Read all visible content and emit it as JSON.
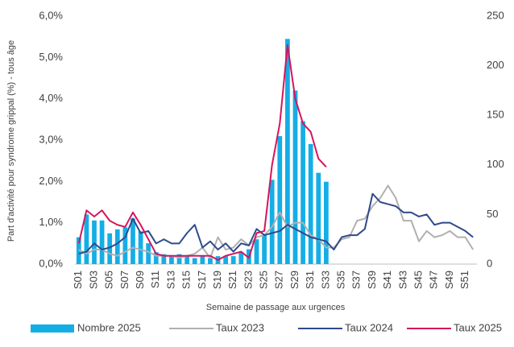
{
  "chart_data": {
    "type": "bar_line",
    "y_label": "Part d'activité pour syndrome grippal (%) - tous âge",
    "x_label": "Semaine de passage aux urgences",
    "categories": [
      "S01",
      null,
      "S03",
      null,
      "S05",
      null,
      "S07",
      null,
      "S09",
      null,
      "S11",
      null,
      "S13",
      null,
      "S15",
      null,
      "S17",
      null,
      "S19",
      null,
      "S21",
      null,
      "S23",
      null,
      "S25",
      null,
      "S27",
      null,
      "S29",
      null,
      "S31",
      null,
      "S33",
      null,
      "S35",
      null,
      "S37",
      null,
      "S39",
      null,
      "S41",
      null,
      "S43",
      null,
      "S45",
      null,
      "S47",
      null,
      "S49",
      null,
      "S51",
      null
    ],
    "ylim": [
      0,
      6
    ],
    "yticks": [
      {
        "value": 0,
        "label": "0,0%"
      },
      {
        "value": 1,
        "label": "1,0%"
      },
      {
        "value": 2,
        "label": "2,0%"
      },
      {
        "value": 3,
        "label": "3,0%"
      },
      {
        "value": 4,
        "label": "4,0%"
      },
      {
        "value": 5,
        "label": "5,0%"
      },
      {
        "value": 6,
        "label": "6,0%"
      }
    ],
    "y2lim": [
      0,
      250
    ],
    "y2ticks": [
      0,
      50,
      100,
      150,
      200,
      250
    ],
    "series": [
      {
        "name": "Nombre 2025",
        "type": "bar",
        "axis": "y2",
        "color": "#14aee6",
        "values": [
          27,
          50,
          44,
          44,
          31,
          35,
          37,
          46,
          33,
          21,
          12,
          10,
          8,
          10,
          8,
          6,
          8,
          6,
          8,
          8,
          8,
          12,
          15,
          25,
          29,
          85,
          129,
          227,
          175,
          144,
          121,
          92,
          83,
          null,
          null,
          null,
          null,
          null,
          null,
          null,
          null,
          null,
          null,
          null,
          null,
          null,
          null,
          null,
          null,
          null,
          null,
          null
        ]
      },
      {
        "name": "Taux 2023",
        "type": "line",
        "color": "#b0b0b0",
        "values": [
          0.35,
          0.25,
          0.35,
          0.35,
          0.25,
          0.2,
          0.3,
          0.4,
          0.35,
          0.3,
          0.2,
          0.2,
          0.2,
          0.15,
          0.2,
          0.25,
          0.4,
          0.15,
          0.65,
          0.35,
          0.4,
          0.6,
          0.45,
          0.65,
          0.7,
          0.9,
          1.25,
          0.9,
          1.0,
          1.0,
          0.7,
          0.6,
          0.4,
          0.4,
          0.6,
          0.65,
          1.05,
          1.1,
          1.4,
          1.6,
          1.9,
          1.6,
          1.05,
          1.05,
          0.55,
          0.8,
          0.65,
          0.7,
          0.8,
          0.65,
          0.65,
          0.35
        ]
      },
      {
        "name": "Taux 2024",
        "type": "line",
        "color": "#2e4a8c",
        "values": [
          0.25,
          0.3,
          0.5,
          0.35,
          0.4,
          0.5,
          0.65,
          1.1,
          0.75,
          0.8,
          0.5,
          0.6,
          0.5,
          0.5,
          0.75,
          0.95,
          0.4,
          0.55,
          0.35,
          0.5,
          0.3,
          0.5,
          0.45,
          0.85,
          0.7,
          0.75,
          0.8,
          0.95,
          0.85,
          0.75,
          0.65,
          0.6,
          0.55,
          0.35,
          0.65,
          0.7,
          0.7,
          0.85,
          1.7,
          1.5,
          1.45,
          1.4,
          1.25,
          1.25,
          1.15,
          1.2,
          0.95,
          1.0,
          1.0,
          0.9,
          0.8,
          0.65
        ]
      },
      {
        "name": "Taux 2025",
        "type": "line",
        "color": "#d6145c",
        "values": [
          0.5,
          1.3,
          1.15,
          1.3,
          1.05,
          0.95,
          0.9,
          1.25,
          0.95,
          0.6,
          0.25,
          0.2,
          0.2,
          0.2,
          0.2,
          0.2,
          0.2,
          0.2,
          0.1,
          0.2,
          0.25,
          0.3,
          0.15,
          0.75,
          0.8,
          2.4,
          3.4,
          5.3,
          4.0,
          3.4,
          3.2,
          2.55,
          2.35,
          null,
          null,
          null,
          null,
          null,
          null,
          null,
          null,
          null,
          null,
          null,
          null,
          null,
          null,
          null,
          null,
          null,
          null,
          null
        ]
      }
    ]
  }
}
